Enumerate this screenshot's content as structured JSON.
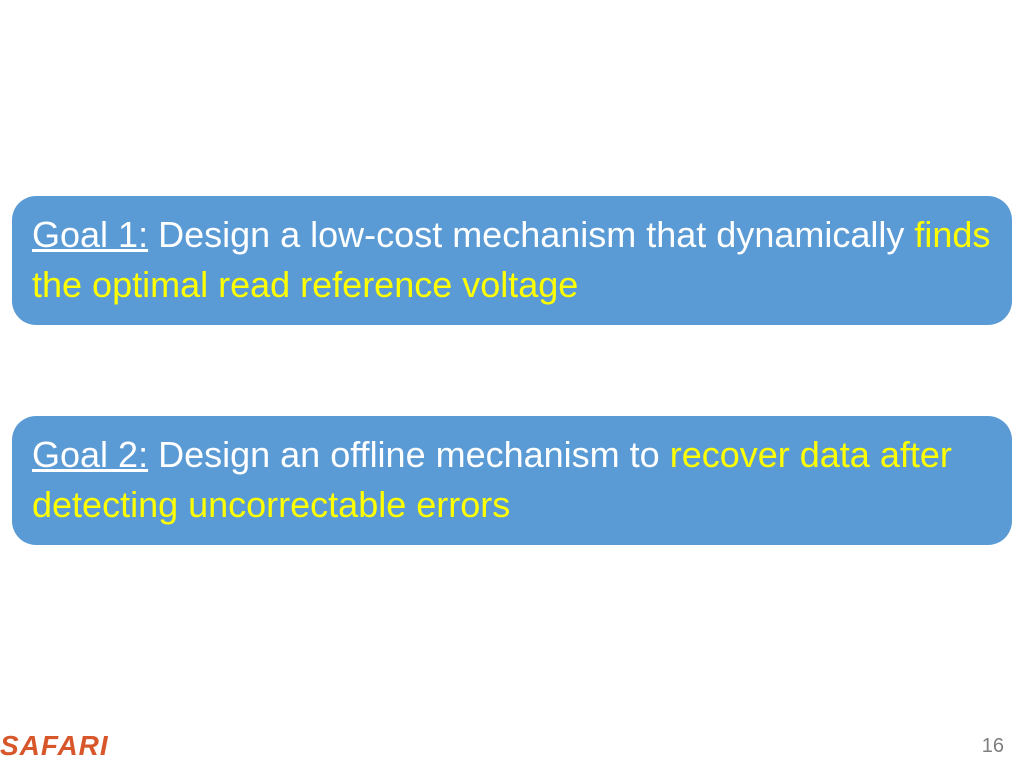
{
  "colors": {
    "box_bg": "#5b9bd5",
    "text_white": "#ffffff",
    "text_yellow": "#ffff00",
    "logo_color": "#d7572b",
    "page_num_color": "#7f7f7f"
  },
  "goal1": {
    "label": "Goal 1:",
    "part1": " Design a low-cost mechanism that dynamically ",
    "highlight": "finds the optimal read reference voltage"
  },
  "goal2": {
    "label": "Goal 2:",
    "part1": " Design an offline mechanism to ",
    "highlight": "recover data after detecting uncorrectable errors"
  },
  "footer": {
    "logo": "SAFARI",
    "page_number": "16"
  }
}
